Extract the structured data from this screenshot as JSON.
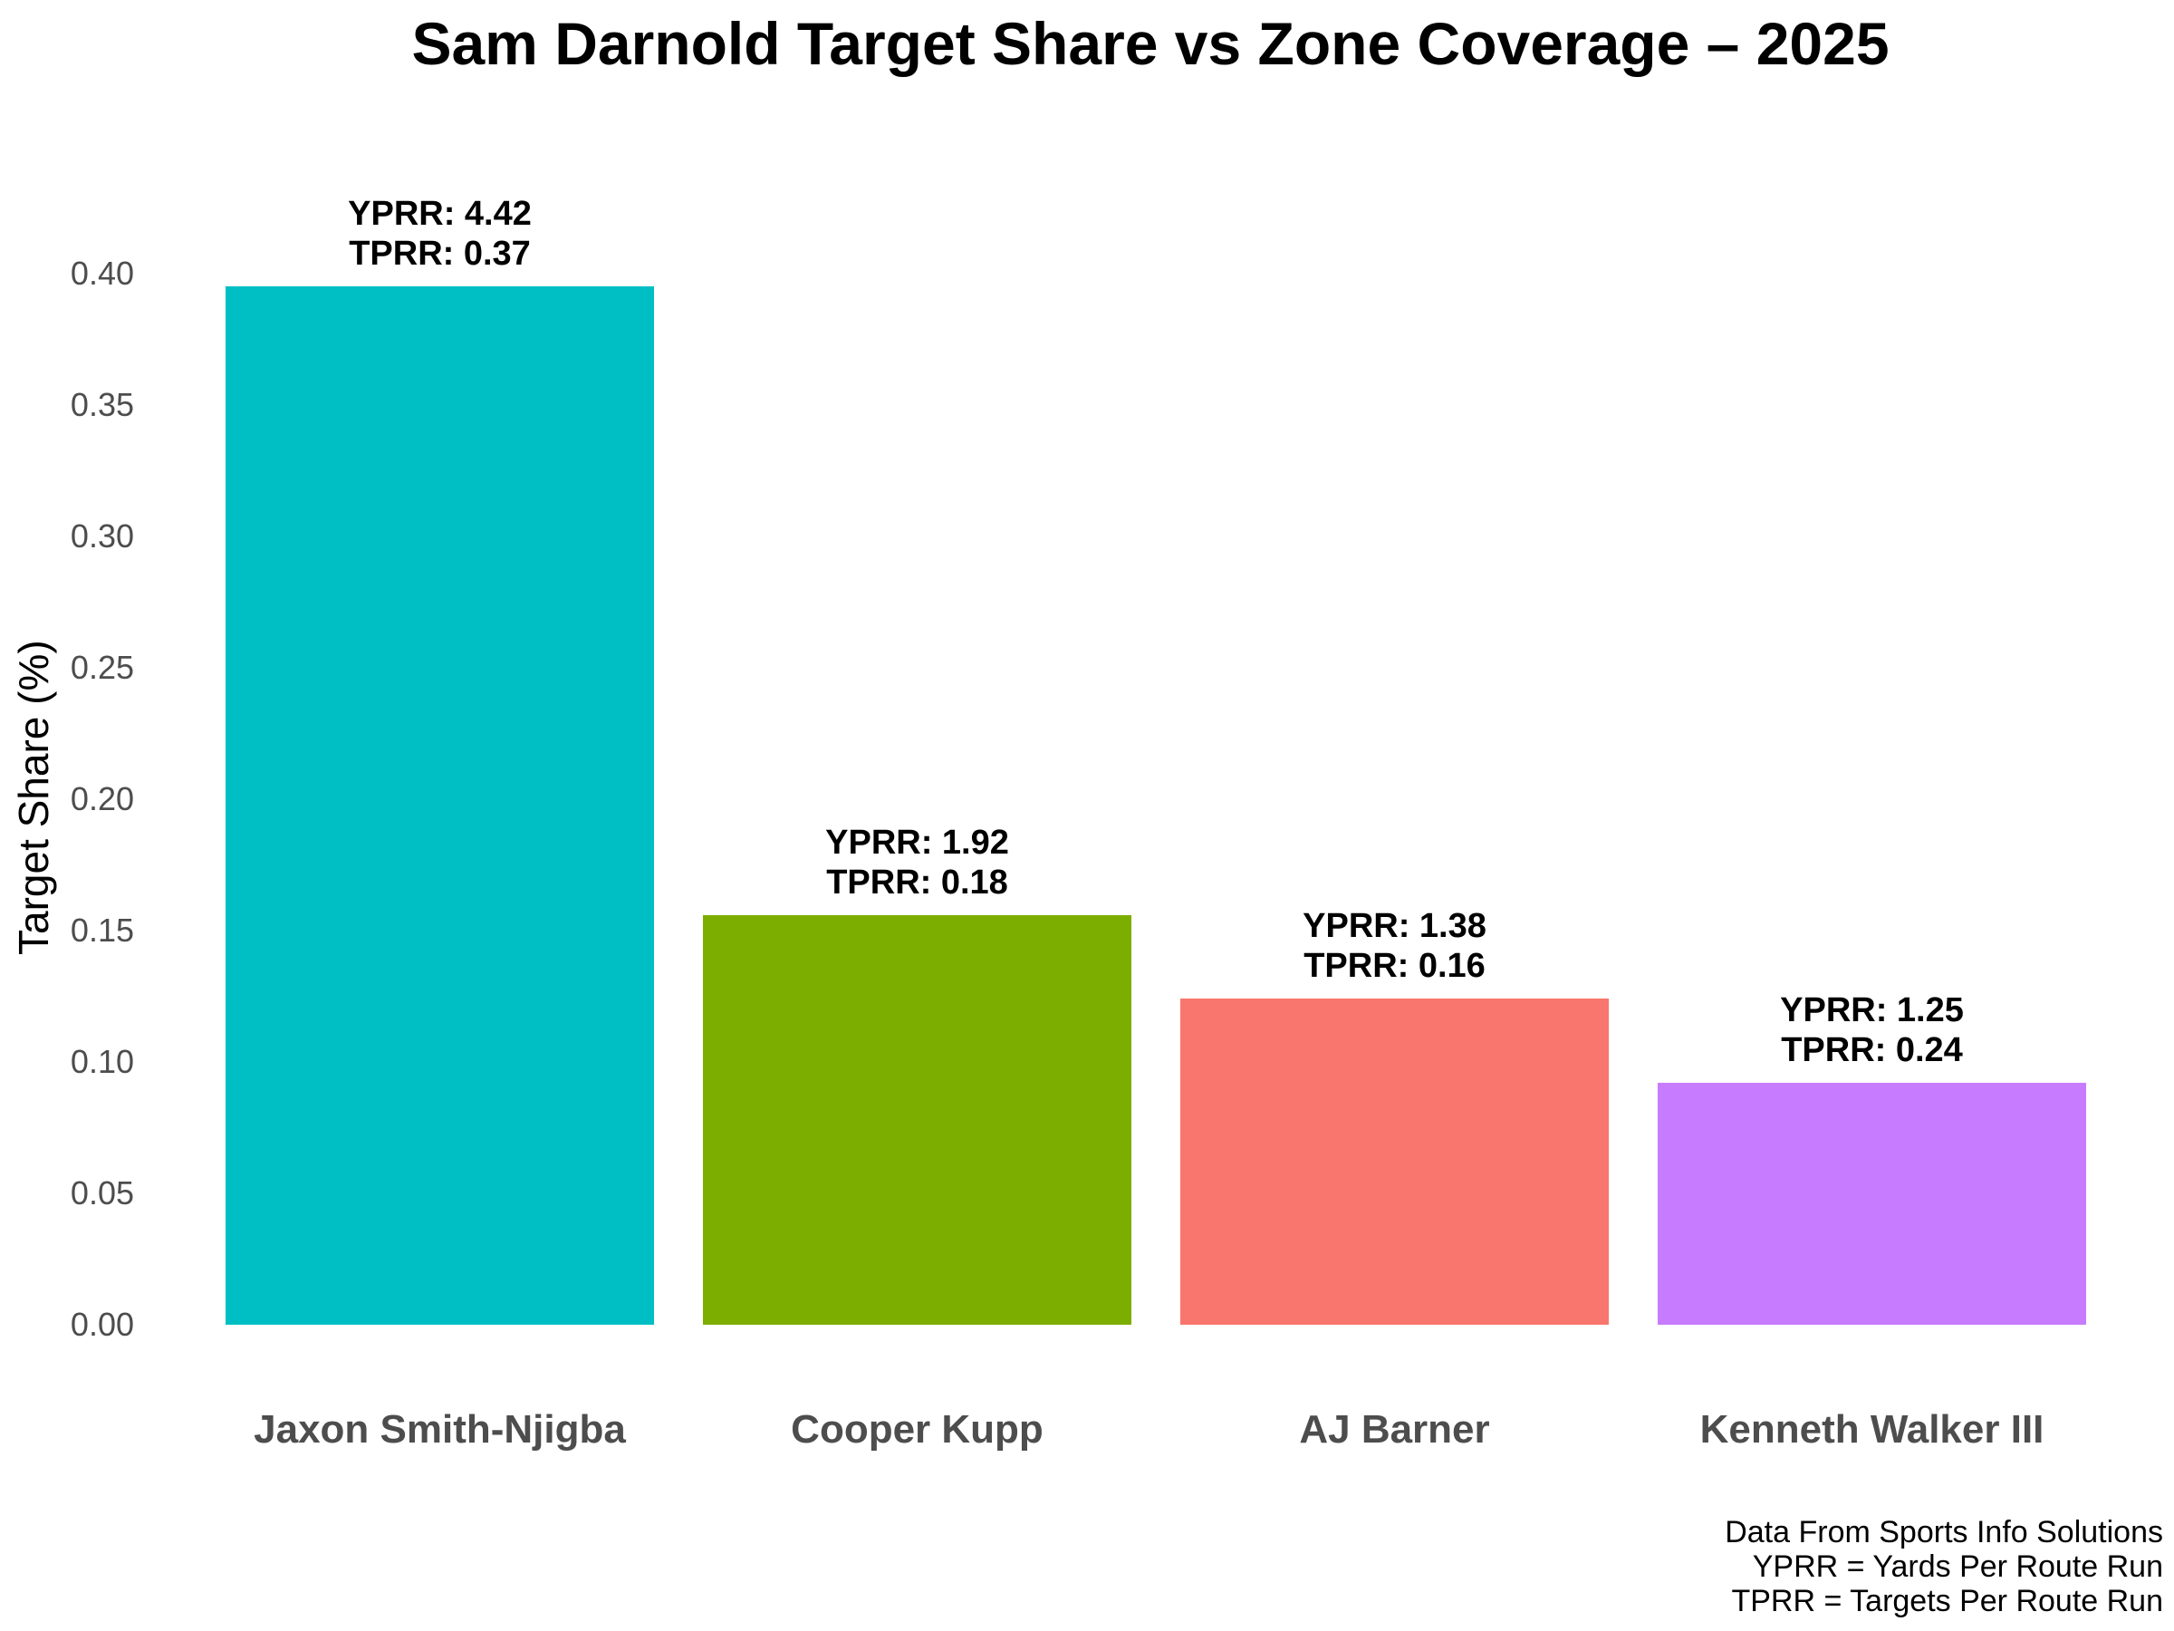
{
  "chart_data": {
    "type": "bar",
    "title": "Sam Darnold Target Share vs Zone Coverage – 2025",
    "ylabel": "Target Share (%)",
    "xlabel": "",
    "categories": [
      "Jaxon Smith-Njigba",
      "Cooper Kupp",
      "AJ Barner",
      "Kenneth Walker III"
    ],
    "values": [
      0.395,
      0.156,
      0.124,
      0.092
    ],
    "bar_colors": [
      "#00BFC4",
      "#7CAE00",
      "#F8766D",
      "#C77CFF"
    ],
    "annotations": [
      {
        "line1": "YPRR: 4.42",
        "line2": "TPRR: 0.37"
      },
      {
        "line1": "YPRR: 1.92",
        "line2": "TPRR: 0.18"
      },
      {
        "line1": "YPRR: 1.38",
        "line2": "TPRR: 0.16"
      },
      {
        "line1": "YPRR: 1.25",
        "line2": "TPRR: 0.24"
      }
    ],
    "yticks": [
      {
        "label": "0.00",
        "value": 0.0
      },
      {
        "label": "0.05",
        "value": 0.05
      },
      {
        "label": "0.10",
        "value": 0.1
      },
      {
        "label": "0.15",
        "value": 0.15
      },
      {
        "label": "0.20",
        "value": 0.2
      },
      {
        "label": "0.25",
        "value": 0.25
      },
      {
        "label": "0.30",
        "value": 0.3
      },
      {
        "label": "0.35",
        "value": 0.35
      },
      {
        "label": "0.40",
        "value": 0.4
      }
    ],
    "ylim": [
      0,
      0.45
    ],
    "grid": false,
    "legend": false
  },
  "footer": {
    "lines": [
      "Data From Sports Info Solutions",
      "YPRR = Yards Per Route Run",
      "TPRR = Targets Per Route Run"
    ]
  },
  "colors": {
    "background": "#FFFFFF",
    "title_text": "#000000",
    "axis_text": "#4D4D4D",
    "annotation_text": "#000000",
    "footer_text": "#000000"
  }
}
